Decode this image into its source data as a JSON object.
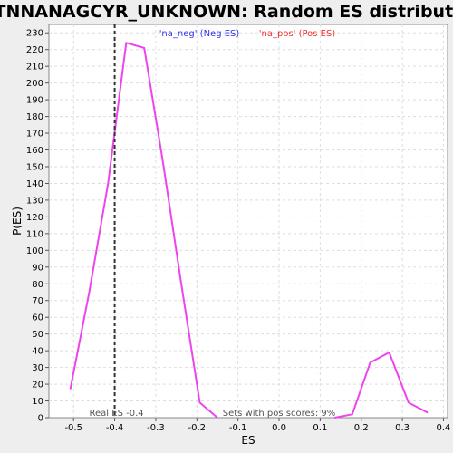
{
  "chart_data": {
    "type": "line",
    "title": "TTTNNANAGCYR_UNKNOWN: Random ES distribution",
    "xlabel": "ES",
    "ylabel": "P(ES)",
    "xlim": [
      -0.56,
      0.41
    ],
    "ylim": [
      0,
      235
    ],
    "xticks": [
      "-0.5",
      "-0.4",
      "-0.3",
      "-0.2",
      "-0.1",
      "0.0",
      "0.1",
      "0.2",
      "0.3",
      "0.4"
    ],
    "xtick_values": [
      -0.5,
      -0.4,
      -0.3,
      -0.2,
      -0.1,
      0.0,
      0.1,
      0.2,
      0.3,
      0.4
    ],
    "ytick_values": [
      0,
      10,
      20,
      30,
      40,
      50,
      60,
      70,
      80,
      90,
      100,
      110,
      120,
      130,
      140,
      150,
      160,
      170,
      180,
      190,
      200,
      210,
      220,
      230
    ],
    "grid": true,
    "legend_placement": "top",
    "series": [
      {
        "name": "'na_neg' (Neg ES)",
        "color": "#ee44ee",
        "x": [
          -0.508,
          -0.462,
          -0.416,
          -0.372,
          -0.328,
          -0.284,
          -0.238,
          -0.193,
          -0.15
        ],
        "y": [
          17,
          75,
          140,
          224,
          221,
          155,
          80,
          9,
          0
        ]
      },
      {
        "name": "'na_pos' (Pos ES)",
        "color": "#ee44ee",
        "x": [
          0.135,
          0.178,
          0.222,
          0.268,
          0.315,
          0.362
        ],
        "y": [
          0,
          2,
          33,
          39,
          9,
          3
        ]
      }
    ],
    "legend": [
      {
        "label": "'na_neg' (Neg ES)",
        "color": "#3333ee"
      },
      {
        "label": "'na_pos' (Pos ES)",
        "color": "#ee3333"
      }
    ],
    "reference_line": {
      "x": -0.4,
      "label": "Real ES -0.4"
    },
    "annotation": "Sets with pos scores: 9%"
  }
}
